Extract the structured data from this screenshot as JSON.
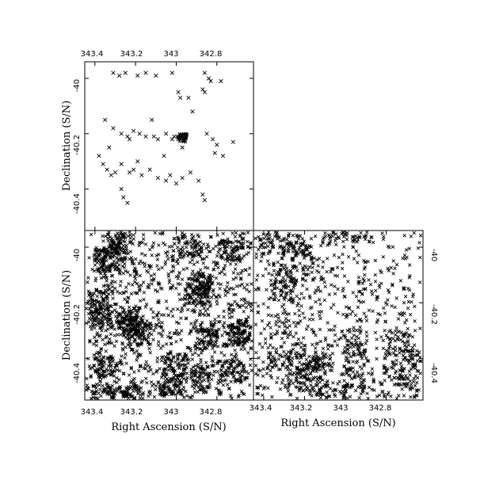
{
  "chart_data": [
    {
      "panel": "top-left",
      "type": "scatter",
      "marker": "x",
      "color": "#000000",
      "x_ticks": [
        "343.4",
        "343.2",
        "343",
        "342.8"
      ],
      "y_ticks": [
        "-40",
        "-40.2",
        "-40.4"
      ],
      "y_tick_values": [
        -40,
        -40.2,
        -40.4
      ],
      "x_tick_values": [
        343.4,
        343.2,
        343,
        342.8
      ],
      "xlim": [
        343.45,
        342.62
      ],
      "ylim": [
        -40.55,
        -39.94
      ],
      "x_axis_inverted": true,
      "xlabel": "",
      "ylabel": "Declination (S/N)",
      "x_ticks_position": "top",
      "y_ticks_position": "left",
      "point_density": "sparse",
      "points": [
        [
          343.31,
          -39.98
        ],
        [
          343.28,
          -39.99
        ],
        [
          343.25,
          -39.98
        ],
        [
          343.19,
          -39.99
        ],
        [
          343.15,
          -39.98
        ],
        [
          343.1,
          -39.99
        ],
        [
          343.02,
          -39.98
        ],
        [
          342.86,
          -39.98
        ],
        [
          342.84,
          -40.0
        ],
        [
          342.83,
          -40.01
        ],
        [
          342.78,
          -40.01
        ],
        [
          342.87,
          -40.04
        ],
        [
          342.86,
          -40.05
        ],
        [
          342.99,
          -40.05
        ],
        [
          342.98,
          -40.07
        ],
        [
          342.94,
          -40.07
        ],
        [
          343.35,
          -40.15
        ],
        [
          343.31,
          -40.18
        ],
        [
          343.27,
          -40.2
        ],
        [
          343.24,
          -40.21
        ],
        [
          343.23,
          -40.22
        ],
        [
          343.21,
          -40.19
        ],
        [
          343.18,
          -40.2
        ],
        [
          343.15,
          -40.21
        ],
        [
          343.11,
          -40.21
        ],
        [
          343.09,
          -40.22
        ],
        [
          343.05,
          -40.2
        ],
        [
          343.02,
          -40.22
        ],
        [
          343.01,
          -40.21
        ],
        [
          342.99,
          -40.22
        ],
        [
          342.98,
          -40.21
        ],
        [
          342.85,
          -40.2
        ],
        [
          342.82,
          -40.22
        ],
        [
          342.8,
          -40.24
        ],
        [
          342.81,
          -40.27
        ],
        [
          342.77,
          -40.28
        ],
        [
          342.72,
          -40.23
        ],
        [
          343.38,
          -40.28
        ],
        [
          343.36,
          -40.31
        ],
        [
          343.34,
          -40.33
        ],
        [
          343.32,
          -40.35
        ],
        [
          343.3,
          -40.34
        ],
        [
          343.27,
          -40.31
        ],
        [
          343.23,
          -40.34
        ],
        [
          343.21,
          -40.33
        ],
        [
          343.17,
          -40.35
        ],
        [
          343.13,
          -40.33
        ],
        [
          343.09,
          -40.36
        ],
        [
          343.05,
          -40.37
        ],
        [
          343.03,
          -40.35
        ],
        [
          343.0,
          -40.38
        ],
        [
          342.97,
          -40.36
        ],
        [
          342.93,
          -40.34
        ],
        [
          342.89,
          -40.37
        ],
        [
          343.27,
          -40.4
        ],
        [
          343.26,
          -40.43
        ],
        [
          343.24,
          -40.45
        ],
        [
          342.87,
          -40.42
        ],
        [
          342.86,
          -40.44
        ],
        [
          342.97,
          -40.25
        ],
        [
          343.06,
          -40.28
        ],
        [
          343.19,
          -40.3
        ],
        [
          343.33,
          -40.25
        ],
        [
          343.12,
          -40.15
        ],
        [
          342.92,
          -40.12
        ]
      ]
    },
    {
      "panel": "bottom-left",
      "type": "scatter",
      "marker": "x",
      "color": "#000000",
      "x_ticks": [
        "343.4",
        "343.2",
        "343",
        "342.8"
      ],
      "y_ticks": [
        "-40",
        "-40.2",
        "-40.4"
      ],
      "y_tick_values": [
        -40,
        -40.2,
        -40.4
      ],
      "x_tick_values": [
        343.4,
        343.2,
        343,
        342.8
      ],
      "xlim": [
        343.45,
        342.62
      ],
      "ylim": [
        -40.55,
        -39.94
      ],
      "x_axis_inverted": true,
      "xlabel": "Right Ascension (S/N)",
      "ylabel": "Declination (S/N)",
      "point_density": "dense",
      "points": []
    },
    {
      "panel": "bottom-right",
      "type": "scatter",
      "marker": "x",
      "color": "#000000",
      "x_ticks": [
        "343.4",
        "343.2",
        "343",
        "342.8"
      ],
      "y_ticks": [
        "-40",
        "-40.2",
        "-40.4"
      ],
      "y_tick_values": [
        -40,
        -40.2,
        -40.4
      ],
      "x_tick_values": [
        343.4,
        343.2,
        343,
        342.8
      ],
      "xlim": [
        343.45,
        342.62
      ],
      "ylim": [
        -40.55,
        -39.94
      ],
      "x_axis_inverted": true,
      "xlabel": "Right Ascension (S/N)",
      "ylabel": "",
      "y_ticks_position": "right",
      "point_density": "moderate",
      "points": []
    }
  ]
}
